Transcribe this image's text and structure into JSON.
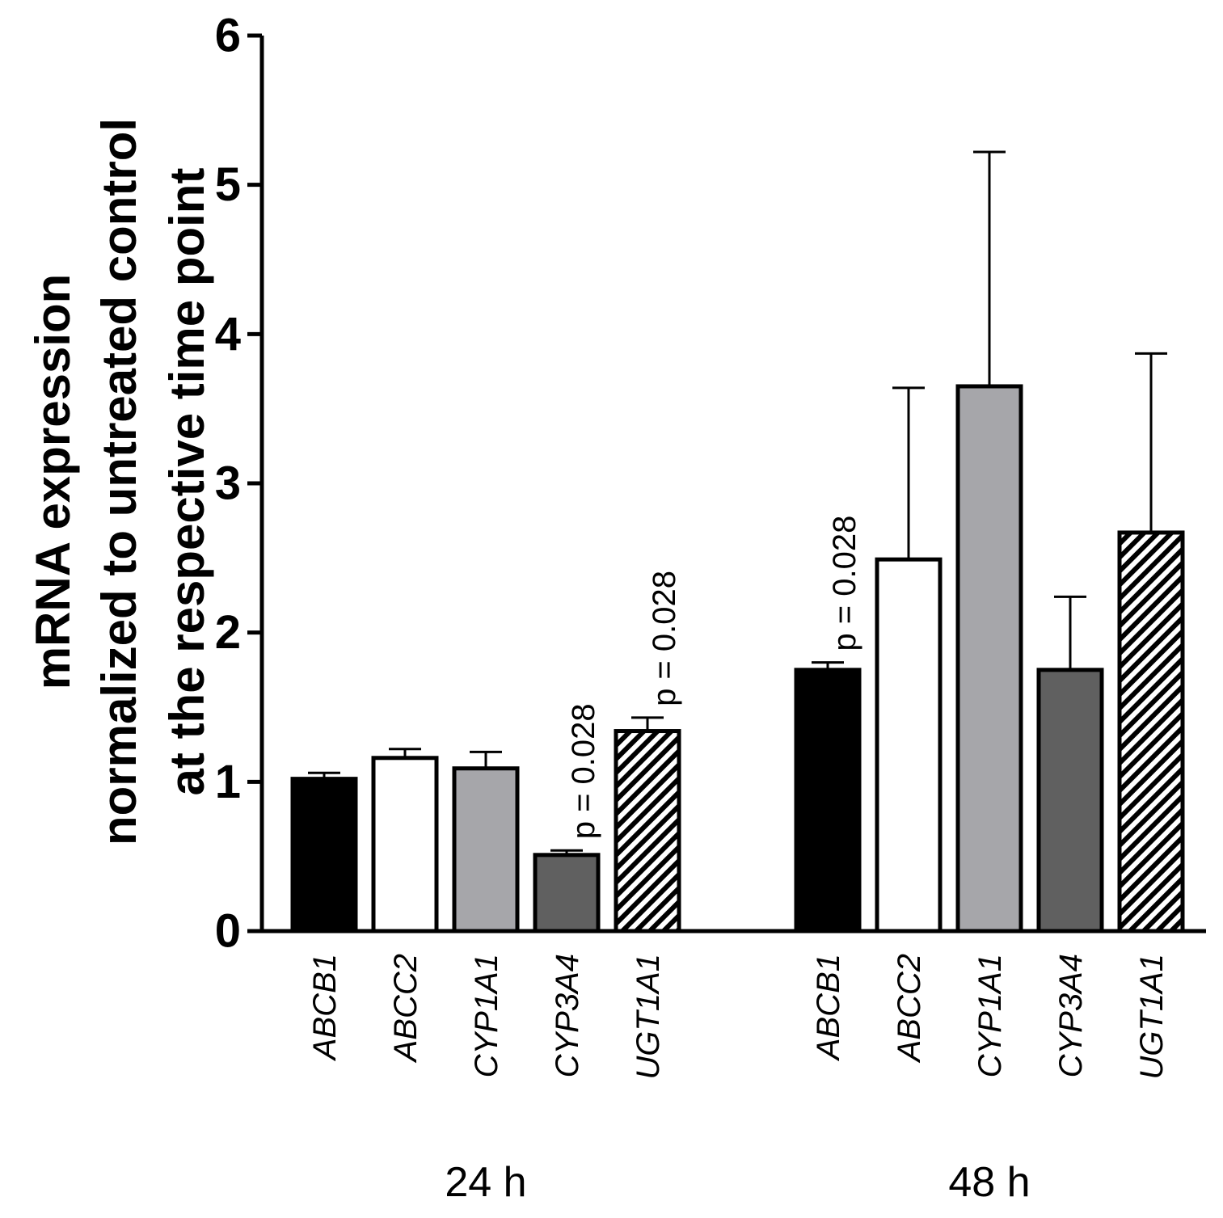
{
  "chart_data": {
    "type": "bar",
    "title": "",
    "ylabel_lines": [
      "mRNA expression",
      "normalized to untreated control",
      "at the respective time point"
    ],
    "xlabel": "",
    "ylim": [
      0,
      6
    ],
    "yticks": [
      "0",
      "1",
      "2",
      "3",
      "4",
      "5",
      "6"
    ],
    "grid": false,
    "groups": [
      {
        "label": "24 h",
        "bars": [
          {
            "gene": "ABCB1",
            "value": 1.02,
            "error": 0.04,
            "fill": "black",
            "annotation": ""
          },
          {
            "gene": "ABCC2",
            "value": 1.16,
            "error": 0.06,
            "fill": "white",
            "annotation": ""
          },
          {
            "gene": "CYP1A1",
            "value": 1.09,
            "error": 0.11,
            "fill": "lightgray",
            "annotation": ""
          },
          {
            "gene": "CYP3A4",
            "value": 0.51,
            "error": 0.03,
            "fill": "darkgray",
            "annotation": "p = 0.028"
          },
          {
            "gene": "UGT1A1",
            "value": 1.34,
            "error": 0.09,
            "fill": "hatched",
            "annotation": "p = 0.028"
          }
        ]
      },
      {
        "label": "48 h",
        "bars": [
          {
            "gene": "ABCB1",
            "value": 1.75,
            "error": 0.05,
            "fill": "black",
            "annotation": "p = 0.028"
          },
          {
            "gene": "ABCC2",
            "value": 2.49,
            "error": 1.15,
            "fill": "white",
            "annotation": ""
          },
          {
            "gene": "CYP1A1",
            "value": 3.65,
            "error": 1.57,
            "fill": "lightgray",
            "annotation": ""
          },
          {
            "gene": "CYP3A4",
            "value": 1.75,
            "error": 0.49,
            "fill": "darkgray",
            "annotation": ""
          },
          {
            "gene": "UGT1A1",
            "value": 2.67,
            "error": 1.2,
            "fill": "hatched",
            "annotation": ""
          }
        ]
      }
    ]
  },
  "colors": {
    "black": "#000000",
    "white": "#ffffff",
    "lightgray": "#a6a6aa",
    "darkgray": "#606060",
    "axis": "#000000"
  }
}
